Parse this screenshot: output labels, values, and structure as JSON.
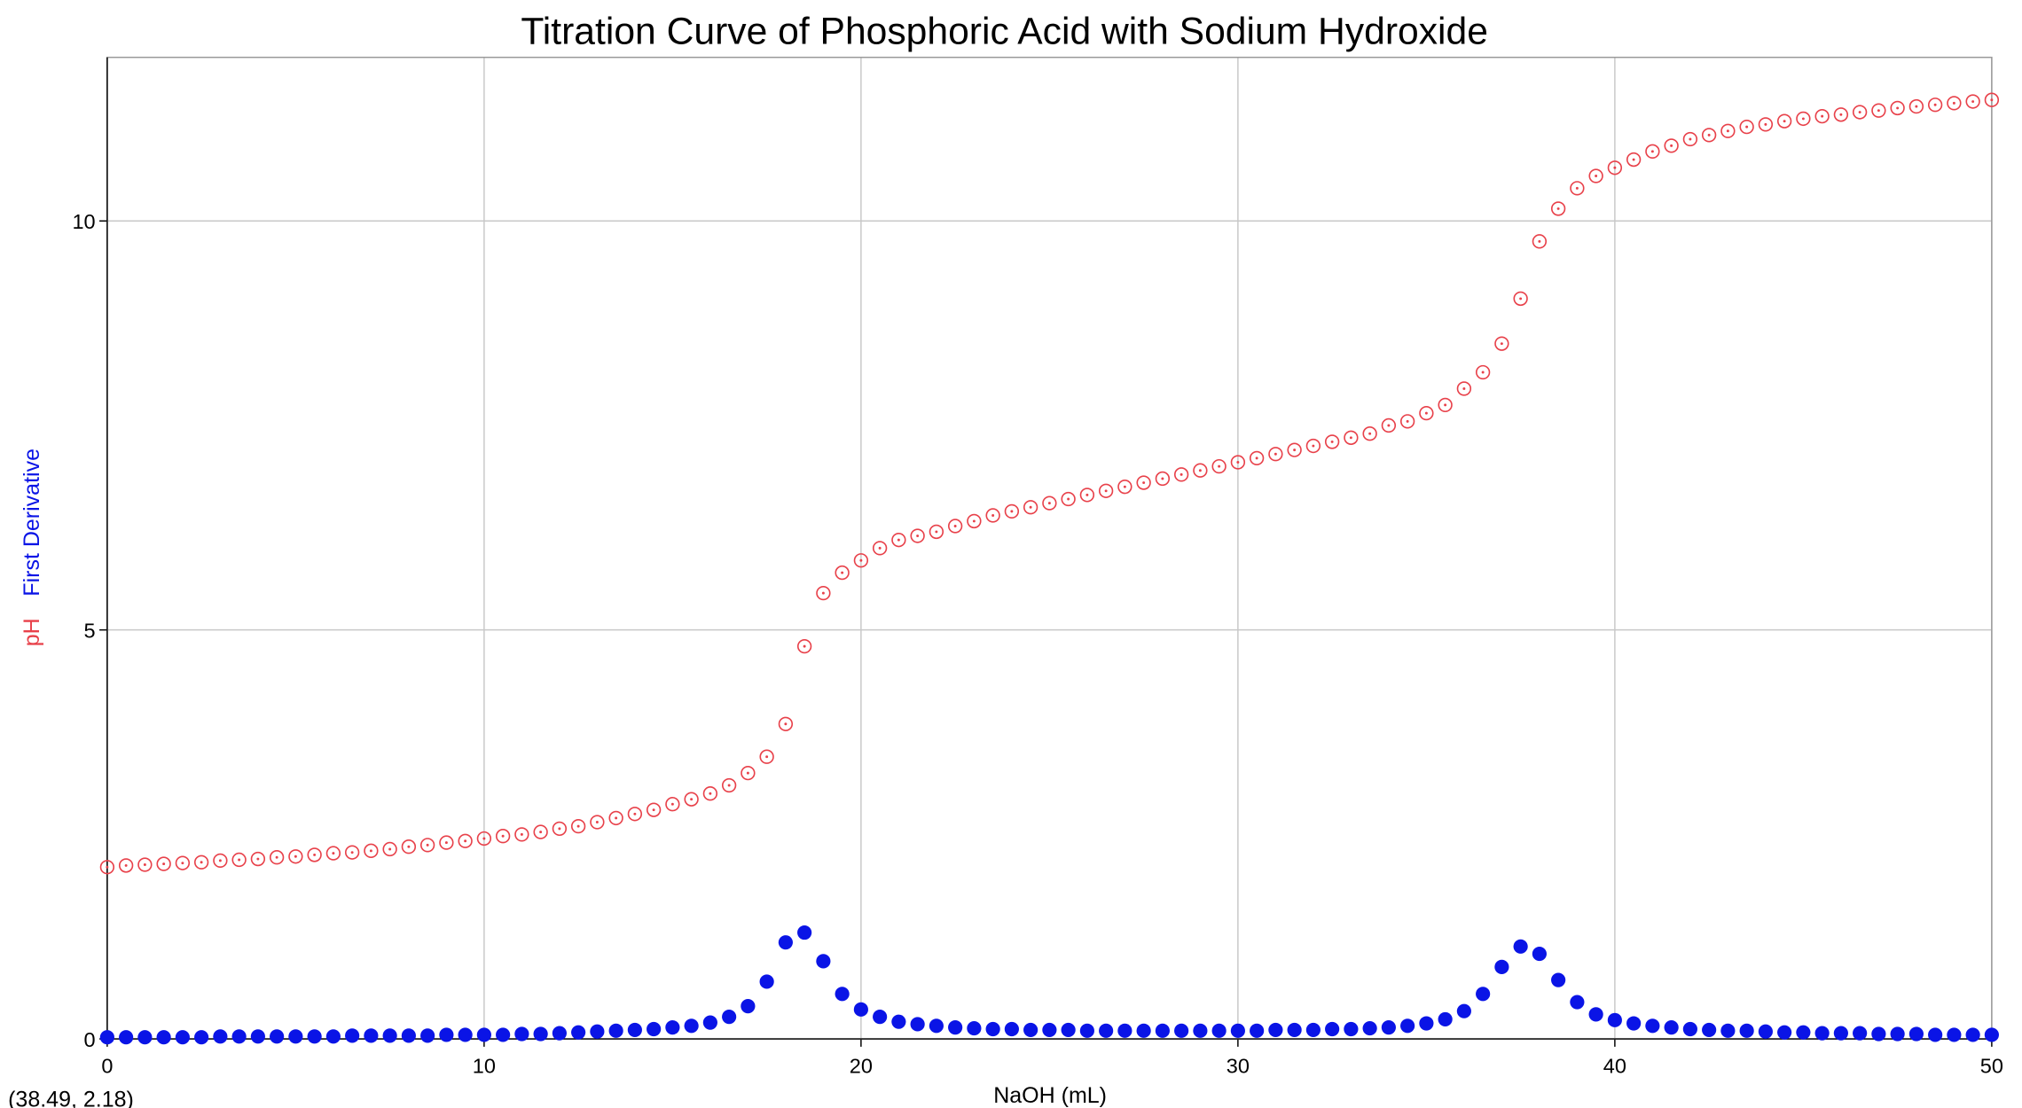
{
  "chart_data": {
    "type": "scatter",
    "title": "Titration Curve of Phosphoric Acid with Sodium Hydroxide",
    "x_label": "NaOH (mL)",
    "cursor_readout": "(38.49, 2.18)",
    "xlim": [
      0,
      50
    ],
    "xticks": [
      0,
      10,
      20,
      30,
      40,
      50
    ],
    "ylim": [
      0,
      12
    ],
    "yticks": [
      0,
      5,
      10
    ],
    "grid": true,
    "x": [
      0,
      0.5,
      1,
      1.5,
      2,
      2.5,
      3,
      3.5,
      4,
      4.5,
      5,
      5.5,
      6,
      6.5,
      7,
      7.5,
      8,
      8.5,
      9,
      9.5,
      10,
      10.5,
      11,
      11.5,
      12,
      12.5,
      13,
      13.5,
      14,
      14.5,
      15,
      15.5,
      16,
      16.5,
      17,
      17.5,
      18,
      18.5,
      19,
      19.5,
      20,
      20.5,
      21,
      21.5,
      22,
      22.5,
      23,
      23.5,
      24,
      24.5,
      25,
      25.5,
      26,
      26.5,
      27,
      27.5,
      28,
      28.5,
      29,
      29.5,
      30,
      30.5,
      31,
      31.5,
      32,
      32.5,
      33,
      33.5,
      34,
      34.5,
      35,
      35.5,
      36,
      36.5,
      37,
      37.5,
      38,
      38.5,
      39,
      39.5,
      40,
      40.5,
      41,
      41.5,
      42,
      42.5,
      43,
      43.5,
      44,
      44.5,
      45,
      45.5,
      46,
      46.5,
      47,
      47.5,
      48,
      48.5,
      49,
      49.5,
      50
    ],
    "series": [
      {
        "name": "pH",
        "color": "#e8414a",
        "marker": "open",
        "values": [
          2.1,
          2.12,
          2.13,
          2.14,
          2.15,
          2.16,
          2.18,
          2.19,
          2.2,
          2.22,
          2.23,
          2.25,
          2.27,
          2.28,
          2.3,
          2.32,
          2.35,
          2.37,
          2.4,
          2.42,
          2.45,
          2.48,
          2.5,
          2.53,
          2.57,
          2.6,
          2.65,
          2.7,
          2.75,
          2.8,
          2.87,
          2.93,
          3.0,
          3.1,
          3.25,
          3.45,
          3.85,
          4.8,
          5.45,
          5.7,
          5.85,
          6.0,
          6.1,
          6.15,
          6.2,
          6.27,
          6.33,
          6.4,
          6.45,
          6.5,
          6.55,
          6.6,
          6.65,
          6.7,
          6.75,
          6.8,
          6.85,
          6.9,
          6.95,
          7.0,
          7.05,
          7.1,
          7.15,
          7.2,
          7.25,
          7.3,
          7.35,
          7.4,
          7.5,
          7.55,
          7.65,
          7.75,
          7.95,
          8.15,
          8.5,
          9.05,
          9.75,
          10.15,
          10.4,
          10.55,
          10.65,
          10.75,
          10.85,
          10.92,
          11.0,
          11.05,
          11.1,
          11.15,
          11.18,
          11.22,
          11.25,
          11.28,
          11.3,
          11.33,
          11.35,
          11.38,
          11.4,
          11.42,
          11.44,
          11.46,
          11.48
        ]
      },
      {
        "name": "First Derivative",
        "color": "#0a14e6",
        "marker": "filled",
        "values": [
          0.02,
          0.02,
          0.02,
          0.02,
          0.02,
          0.02,
          0.03,
          0.03,
          0.03,
          0.03,
          0.03,
          0.03,
          0.03,
          0.04,
          0.04,
          0.04,
          0.04,
          0.04,
          0.05,
          0.05,
          0.05,
          0.05,
          0.06,
          0.06,
          0.07,
          0.08,
          0.09,
          0.1,
          0.11,
          0.12,
          0.14,
          0.16,
          0.2,
          0.27,
          0.4,
          0.7,
          1.18,
          1.3,
          0.95,
          0.55,
          0.36,
          0.27,
          0.21,
          0.18,
          0.16,
          0.14,
          0.13,
          0.12,
          0.12,
          0.11,
          0.11,
          0.11,
          0.1,
          0.1,
          0.1,
          0.1,
          0.1,
          0.1,
          0.1,
          0.1,
          0.1,
          0.1,
          0.11,
          0.11,
          0.11,
          0.12,
          0.12,
          0.13,
          0.14,
          0.16,
          0.19,
          0.24,
          0.34,
          0.55,
          0.88,
          1.13,
          1.04,
          0.72,
          0.45,
          0.3,
          0.23,
          0.19,
          0.16,
          0.14,
          0.12,
          0.11,
          0.1,
          0.1,
          0.09,
          0.08,
          0.08,
          0.07,
          0.07,
          0.07,
          0.06,
          0.06,
          0.06,
          0.05,
          0.05,
          0.05,
          0.05
        ]
      }
    ]
  }
}
